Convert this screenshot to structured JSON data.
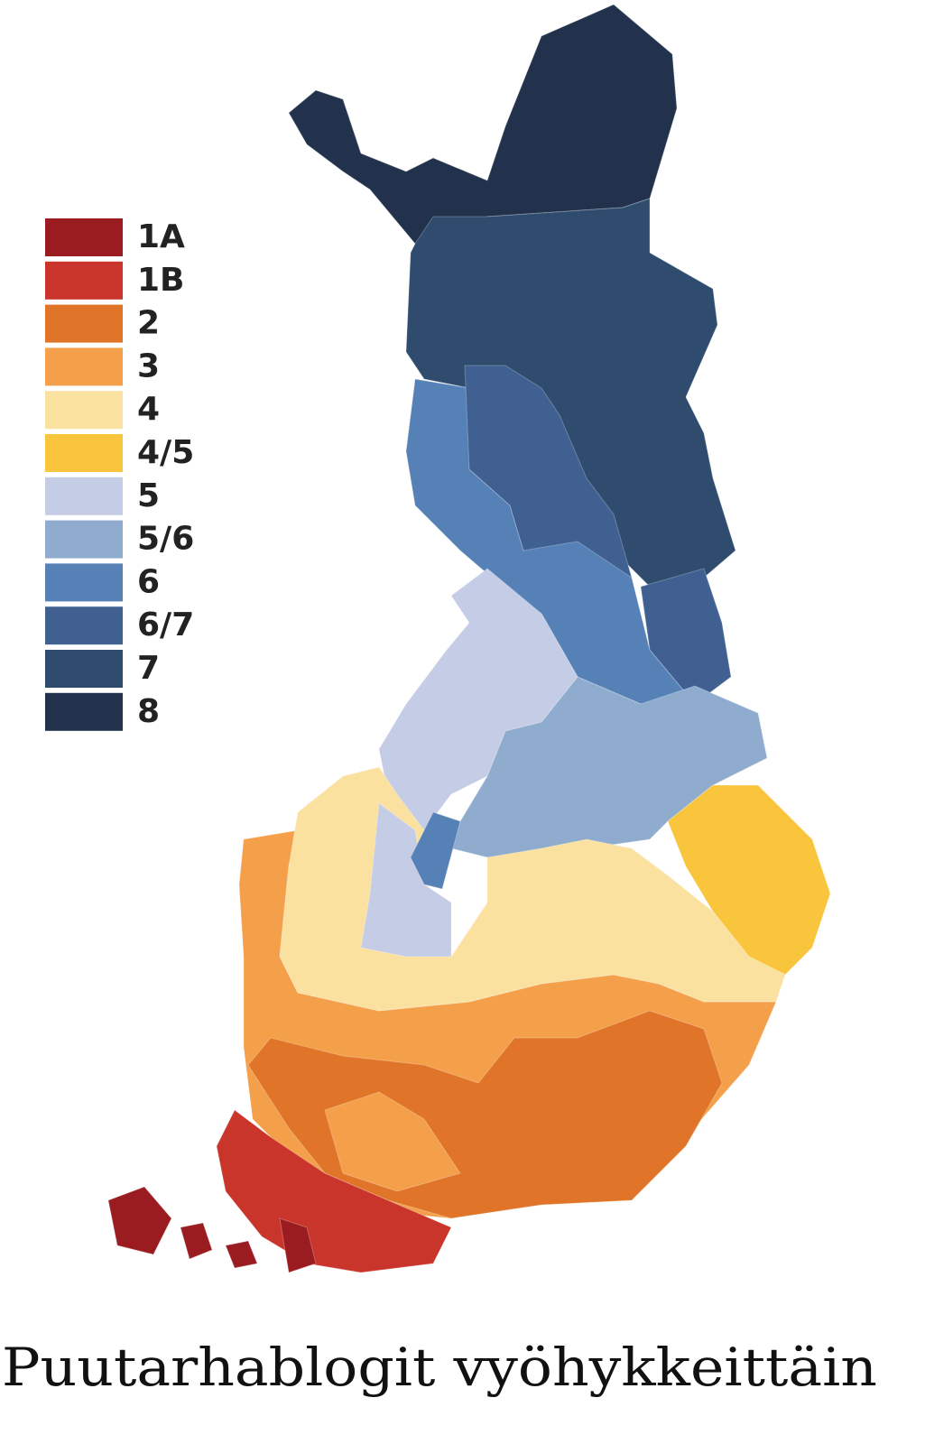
{
  "legend": [
    {
      "label": "1A",
      "color": "#9b1c20"
    },
    {
      "label": "1B",
      "color": "#c9342b"
    },
    {
      "label": "2",
      "color": "#e07529"
    },
    {
      "label": "3",
      "color": "#f4a04a"
    },
    {
      "label": "4",
      "color": "#fbe1a0"
    },
    {
      "label": "4/5",
      "color": "#f9c53c"
    },
    {
      "label": "5",
      "color": "#c5cce6"
    },
    {
      "label": "5/6",
      "color": "#8faccf"
    },
    {
      "label": "6",
      "color": "#5681b6"
    },
    {
      "label": "6/7",
      "color": "#3f6091"
    },
    {
      "label": "7",
      "color": "#2f4c6e"
    },
    {
      "label": "8",
      "color": "#22324d"
    }
  ],
  "title": "Puutarhablogit vyöhykkeittäin"
}
